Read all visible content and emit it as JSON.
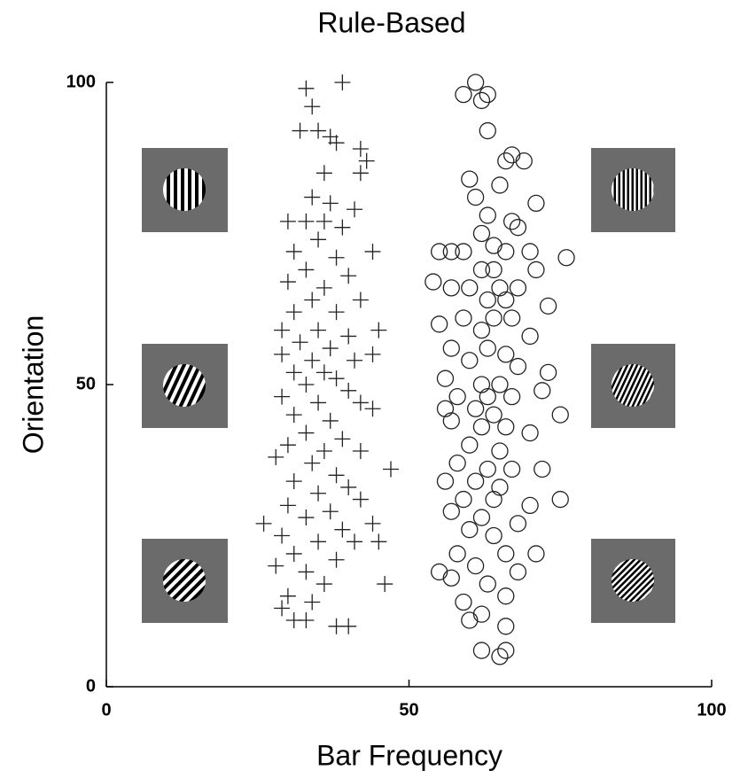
{
  "chart_data": {
    "type": "scatter",
    "title": "Rule-Based",
    "x_label": "Bar Frequency",
    "y_label": "Orientation",
    "xlim": [
      0,
      100
    ],
    "ylim": [
      0,
      100
    ],
    "xticks": [
      0,
      50,
      100
    ],
    "yticks": [
      0,
      50,
      100
    ],
    "grid": false,
    "series": [
      {
        "marker": "plus",
        "color": "#222222",
        "x": [
          33,
          39,
          34,
          32,
          35,
          37,
          38,
          42,
          43,
          42,
          36,
          34,
          37,
          41,
          30,
          33,
          36,
          39,
          35,
          44,
          31,
          38,
          33,
          40,
          30,
          36,
          34,
          42,
          31,
          38,
          29,
          35,
          40,
          45,
          32,
          37,
          29,
          34,
          41,
          44,
          31,
          36,
          38,
          33,
          40,
          29,
          35,
          42,
          44,
          31,
          37,
          33,
          39,
          30,
          36,
          42,
          28,
          34,
          47,
          38,
          31,
          40,
          35,
          30,
          42,
          37,
          33,
          26,
          44,
          39,
          29,
          35,
          41,
          45,
          31,
          38,
          33,
          28,
          36,
          46,
          30,
          34,
          29,
          31,
          33,
          38,
          40
        ],
        "values": [
          99,
          100,
          96,
          92,
          92,
          91,
          90,
          89,
          87,
          85,
          85,
          81,
          80,
          79,
          77,
          77,
          77,
          76,
          74,
          72,
          72,
          71,
          69,
          68,
          67,
          66,
          64,
          64,
          62,
          62,
          59,
          59,
          58,
          59,
          57,
          56,
          55,
          54,
          54,
          55,
          52,
          52,
          51,
          50,
          49,
          48,
          47,
          47,
          46,
          45,
          44,
          42,
          41,
          40,
          39,
          39,
          38,
          37,
          36,
          35,
          34,
          33,
          32,
          30,
          31,
          29,
          28,
          27,
          27,
          26,
          25,
          24,
          24,
          24,
          22,
          21,
          19,
          20,
          17,
          17,
          15,
          14,
          13,
          11,
          11,
          10,
          10
        ]
      },
      {
        "marker": "circle",
        "color": "#222222",
        "x": [
          61,
          59,
          62,
          63,
          63,
          67,
          66,
          69,
          60,
          65,
          61,
          71,
          63,
          67,
          62,
          68,
          64,
          55,
          57,
          59,
          66,
          70,
          76,
          62,
          64,
          71,
          54,
          57,
          60,
          65,
          68,
          63,
          66,
          73,
          59,
          64,
          67,
          55,
          62,
          70,
          57,
          63,
          66,
          60,
          68,
          73,
          56,
          62,
          65,
          58,
          63,
          67,
          72,
          56,
          61,
          64,
          75,
          57,
          62,
          66,
          70,
          60,
          65,
          58,
          63,
          67,
          72,
          56,
          61,
          65,
          59,
          64,
          70,
          75,
          57,
          62,
          68,
          60,
          64,
          58,
          66,
          71,
          61,
          68,
          55,
          57,
          63,
          66,
          59,
          62,
          60,
          66,
          62,
          65,
          66
        ],
        "values": [
          100,
          98,
          97,
          98,
          92,
          88,
          87,
          87,
          84,
          83,
          81,
          80,
          78,
          77,
          75,
          76,
          73,
          72,
          72,
          72,
          72,
          72,
          71,
          69,
          69,
          69,
          67,
          66,
          66,
          66,
          66,
          64,
          64,
          63,
          61,
          61,
          61,
          60,
          59,
          58,
          56,
          56,
          55,
          54,
          53,
          52,
          51,
          50,
          50,
          48,
          48,
          48,
          49,
          46,
          46,
          45,
          45,
          44,
          43,
          43,
          42,
          40,
          39,
          37,
          36,
          36,
          36,
          34,
          34,
          33,
          31,
          31,
          30,
          31,
          29,
          28,
          27,
          26,
          25,
          22,
          22,
          22,
          20,
          19,
          19,
          18,
          17,
          15,
          14,
          12,
          11,
          10,
          6,
          5,
          6
        ]
      }
    ]
  }
}
